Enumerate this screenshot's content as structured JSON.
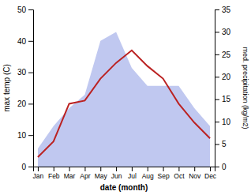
{
  "chart_data": {
    "type": "line",
    "xlabel": "date (month)",
    "ylabel": "max temp (C)",
    "y2label": "med. precipitation (kg/m2)",
    "categories": [
      "Jan",
      "Feb",
      "Mar",
      "Apr",
      "May",
      "Jun",
      "Jul",
      "Aug",
      "Sep",
      "Oct",
      "Nov",
      "Dec"
    ],
    "ylim": [
      0,
      50
    ],
    "yticks": [
      0,
      10,
      20,
      30,
      40,
      50
    ],
    "y2lim": [
      0,
      35
    ],
    "y2ticks": [
      0,
      5,
      10,
      15,
      20,
      25,
      30,
      35
    ],
    "series": [
      {
        "type": "area",
        "axis": "y2",
        "color": "#c0c8f0",
        "values": [
          4,
          9,
          13,
          16,
          28,
          30,
          22,
          18,
          18,
          18,
          13,
          9
        ]
      },
      {
        "type": "line",
        "color": "#bb2222",
        "values": [
          3,
          8,
          20,
          21,
          28,
          33,
          37,
          32,
          28,
          20,
          14,
          9
        ]
      }
    ]
  }
}
